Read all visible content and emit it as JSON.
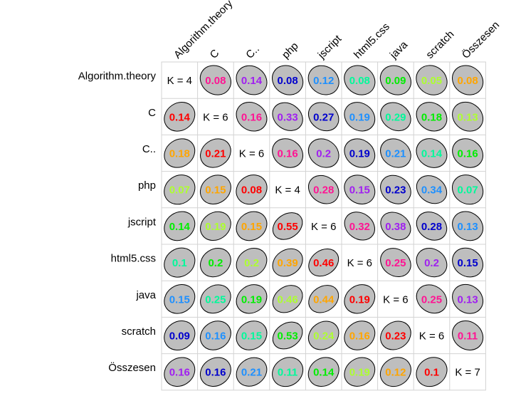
{
  "chart_data": {
    "type": "heatmap",
    "title": "",
    "variables": [
      "Algorithm.theory",
      "C",
      "C..",
      "php",
      "jscript",
      "html5.css",
      "java",
      "scratch",
      "Összesen"
    ],
    "column_labels": [
      "Algorithm.theory",
      "C",
      "C..",
      "php",
      "jscript",
      "html5.css",
      "java",
      "scratch",
      "Összesen"
    ],
    "row_labels": [
      "Algorithm.theory",
      "C",
      "C..",
      "php",
      "jscript",
      "html5.css",
      "java",
      "scratch",
      "Összesen"
    ],
    "diagonal_labels": [
      "K = 4",
      "K = 6",
      "K = 6",
      "K = 4",
      "K = 6",
      "K = 6",
      "K = 6",
      "K = 6",
      "K = 7"
    ],
    "values": [
      [
        null,
        0.08,
        0.14,
        0.08,
        0.12,
        0.08,
        0.09,
        0.05,
        0.08
      ],
      [
        0.14,
        null,
        0.16,
        0.33,
        0.27,
        0.19,
        0.29,
        0.18,
        0.13
      ],
      [
        0.18,
        0.21,
        null,
        0.16,
        0.2,
        0.19,
        0.21,
        0.14,
        0.16
      ],
      [
        0.07,
        0.15,
        0.08,
        null,
        0.28,
        0.15,
        0.23,
        0.34,
        0.07
      ],
      [
        0.14,
        0.19,
        0.15,
        0.55,
        null,
        0.32,
        0.38,
        0.28,
        0.13
      ],
      [
        0.1,
        0.2,
        0.2,
        0.39,
        0.46,
        null,
        0.25,
        0.2,
        0.15
      ],
      [
        0.15,
        0.25,
        0.19,
        0.46,
        0.44,
        0.19,
        null,
        0.25,
        0.13
      ],
      [
        0.09,
        0.16,
        0.15,
        0.53,
        0.24,
        0.16,
        0.23,
        null,
        0.11
      ],
      [
        0.16,
        0.16,
        0.21,
        0.11,
        0.14,
        0.19,
        0.12,
        0.1,
        null
      ]
    ],
    "colors": [
      [
        null,
        "#ff1493",
        "#a020f0",
        "#0000cd",
        "#1e90ff",
        "#00fa9a",
        "#00ee00",
        "#adff2f",
        "#ffa500"
      ],
      [
        "#ff0000",
        null,
        "#ff1493",
        "#a020f0",
        "#0000cd",
        "#1e90ff",
        "#00fa9a",
        "#00ee00",
        "#adff2f"
      ],
      [
        "#ffa500",
        "#ff0000",
        null,
        "#ff1493",
        "#a020f0",
        "#0000cd",
        "#1e90ff",
        "#00fa9a",
        "#00ee00"
      ],
      [
        "#adff2f",
        "#ffa500",
        "#ff0000",
        null,
        "#ff1493",
        "#a020f0",
        "#0000cd",
        "#1e90ff",
        "#00fa9a"
      ],
      [
        "#00ee00",
        "#adff2f",
        "#ffa500",
        "#ff0000",
        null,
        "#ff1493",
        "#a020f0",
        "#0000cd",
        "#1e90ff"
      ],
      [
        "#00fa9a",
        "#00ee00",
        "#adff2f",
        "#ffa500",
        "#ff0000",
        null,
        "#ff1493",
        "#a020f0",
        "#0000cd"
      ],
      [
        "#1e90ff",
        "#00fa9a",
        "#00ee00",
        "#adff2f",
        "#ffa500",
        "#ff0000",
        null,
        "#ff1493",
        "#a020f0"
      ],
      [
        "#0000cd",
        "#1e90ff",
        "#00fa9a",
        "#00ee00",
        "#adff2f",
        "#ffa500",
        "#ff0000",
        null,
        "#ff1493"
      ],
      [
        "#a020f0",
        "#0000cd",
        "#1e90ff",
        "#00fa9a",
        "#00ee00",
        "#adff2f",
        "#ffa500",
        "#ff0000",
        null
      ]
    ],
    "ellipse_fill": "#bebebe",
    "ellipse_stroke": "#000000",
    "grid": true
  }
}
